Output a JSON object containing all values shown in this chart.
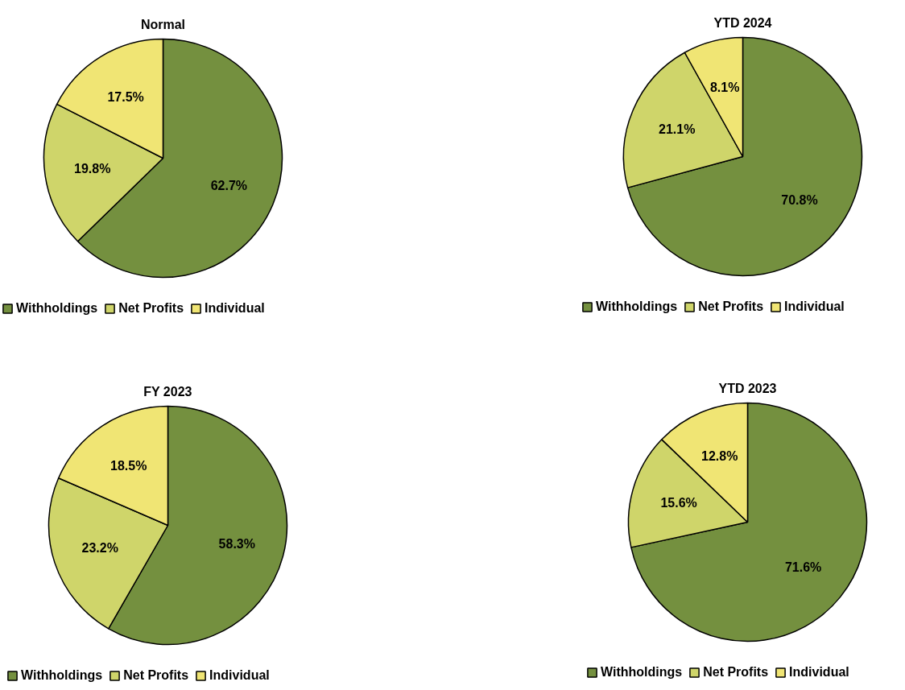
{
  "chart_data": [
    {
      "type": "pie",
      "title": "Normal",
      "categories": [
        "Withholdings",
        "Net Profits",
        "Individual"
      ],
      "values": [
        62.7,
        19.8,
        17.5
      ],
      "value_labels": [
        "62.7%",
        "19.8%",
        "17.5%"
      ],
      "colors": [
        "#74903f",
        "#cfd56a",
        "#f0e574"
      ],
      "legend": "bottom"
    },
    {
      "type": "pie",
      "title": "YTD 2024",
      "categories": [
        "Withholdings",
        "Net Profits",
        "Individual"
      ],
      "values": [
        70.8,
        21.1,
        8.1
      ],
      "value_labels": [
        "70.8%",
        "21.1%",
        "8.1%"
      ],
      "colors": [
        "#74903f",
        "#cfd56a",
        "#f0e574"
      ],
      "legend": "bottom"
    },
    {
      "type": "pie",
      "title": "FY 2023",
      "categories": [
        "Withholdings",
        "Net Profits",
        "Individual"
      ],
      "values": [
        58.3,
        23.2,
        18.5
      ],
      "value_labels": [
        "58.3%",
        "23.2%",
        "18.5%"
      ],
      "colors": [
        "#74903f",
        "#cfd56a",
        "#f0e574"
      ],
      "legend": "bottom"
    },
    {
      "type": "pie",
      "title": "YTD 2023",
      "categories": [
        "Withholdings",
        "Net Profits",
        "Individual"
      ],
      "values": [
        71.6,
        15.6,
        12.8
      ],
      "value_labels": [
        "71.6%",
        "15.6%",
        "12.8%"
      ],
      "colors": [
        "#74903f",
        "#cfd56a",
        "#f0e574"
      ],
      "legend": "bottom"
    }
  ]
}
